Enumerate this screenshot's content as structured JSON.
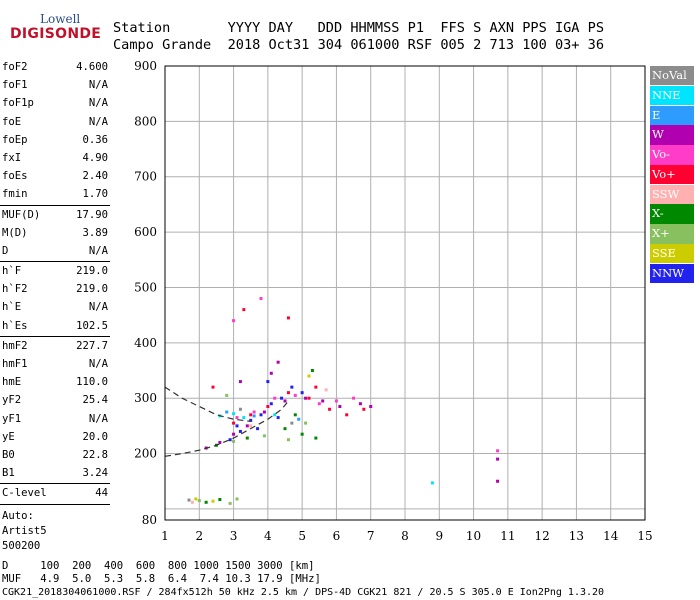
{
  "logo": {
    "top": "Lowell",
    "bottom": "DIGISONDE"
  },
  "header": {
    "row1": "Station       YYYY DAY   DDD HHMMSS P1  FFS S AXN PPS IGA PS",
    "row2": "Campo Grande  2018 Oct31 304 061000 RSF 005 2 713 100 03+ 36"
  },
  "params": {
    "groups": [
      [
        {
          "name": "foF2",
          "value": "4.600"
        },
        {
          "name": "foF1",
          "value": "N/A"
        },
        {
          "name": "foF1p",
          "value": "N/A"
        },
        {
          "name": "foE",
          "value": "N/A"
        },
        {
          "name": "foEp",
          "value": "0.36"
        },
        {
          "name": "fxI",
          "value": "4.90"
        },
        {
          "name": "foEs",
          "value": "2.40"
        },
        {
          "name": "fmin",
          "value": "1.70"
        }
      ],
      [
        {
          "name": "MUF(D)",
          "value": "17.90"
        },
        {
          "name": "M(D)",
          "value": "3.89"
        },
        {
          "name": "D",
          "value": "N/A"
        }
      ],
      [
        {
          "name": "h`F",
          "value": "219.0"
        },
        {
          "name": "h`F2",
          "value": "219.0"
        },
        {
          "name": "h`E",
          "value": "N/A"
        },
        {
          "name": "h`Es",
          "value": "102.5"
        }
      ],
      [
        {
          "name": "hmF2",
          "value": "227.7"
        },
        {
          "name": "hmF1",
          "value": "N/A"
        },
        {
          "name": "hmE",
          "value": "110.0"
        },
        {
          "name": "yF2",
          "value": "25.4"
        },
        {
          "name": "yF1",
          "value": "N/A"
        },
        {
          "name": "yE",
          "value": "20.0"
        },
        {
          "name": "B0",
          "value": "22.8"
        },
        {
          "name": "B1",
          "value": "3.24"
        }
      ],
      [
        {
          "name": "C-level",
          "value": "44"
        }
      ]
    ],
    "auto_label": "Auto:",
    "artist": "Artist5",
    "code": "500200"
  },
  "legend": [
    {
      "label": "NoVal",
      "color": "#8c8c8c"
    },
    {
      "label": "NNE",
      "color": "#00e5ff"
    },
    {
      "label": "E",
      "color": "#2e9bff"
    },
    {
      "label": "W",
      "color": "#b000b0"
    },
    {
      "label": "Vo-",
      "color": "#ff3cc8"
    },
    {
      "label": "Vo+",
      "color": "#ff0030"
    },
    {
      "label": "SSW",
      "color": "#ffb0b0"
    },
    {
      "label": "X-",
      "color": "#008800"
    },
    {
      "label": "X+",
      "color": "#88c060"
    },
    {
      "label": "SSE",
      "color": "#cccc00"
    },
    {
      "label": "NNW",
      "color": "#2222ee"
    }
  ],
  "footer": {
    "line1": "D     100  200  400  600  800 1000 1500 3000 [km]",
    "line2": "MUF   4.9  5.0  5.3  5.8  6.4  7.4 10.3 17.9 [MHz]",
    "line3": "CGK21_2018304061000.RSF / 284fx512h 50 kHz 2.5 km / DPS-4D CGK21 821 / 20.5 S 305.0 E Ion2Png 1.3.20"
  },
  "chart_data": {
    "type": "scatter",
    "xlim": [
      1,
      15
    ],
    "ylim": [
      80,
      900
    ],
    "x_ticks": [
      1,
      2,
      3,
      4,
      5,
      6,
      7,
      8,
      9,
      10,
      11,
      12,
      13,
      14,
      15
    ],
    "y_ticks": [
      80,
      100,
      200,
      300,
      400,
      500,
      600,
      700,
      800,
      900
    ],
    "y_tick_labels": [
      "80",
      "",
      "200",
      "300",
      "400",
      "500",
      "600",
      "700",
      "800",
      "900"
    ],
    "grid": true,
    "legend_position": "right",
    "series": [
      {
        "color": "#2222ee",
        "points": [
          [
            2.9,
            225
          ],
          [
            3.2,
            240
          ],
          [
            3.5,
            260
          ],
          [
            3.8,
            270
          ],
          [
            4.1,
            290
          ],
          [
            4.4,
            300
          ],
          [
            4.0,
            330
          ],
          [
            4.7,
            320
          ],
          [
            5.0,
            310
          ],
          [
            3.1,
            250
          ],
          [
            3.7,
            245
          ],
          [
            4.3,
            265
          ]
        ]
      },
      {
        "color": "#b000b0",
        "points": [
          [
            2.6,
            220
          ],
          [
            3.0,
            235
          ],
          [
            3.4,
            250
          ],
          [
            3.9,
            275
          ],
          [
            4.5,
            295
          ],
          [
            5.1,
            300
          ],
          [
            5.6,
            295
          ],
          [
            6.1,
            285
          ],
          [
            6.7,
            290
          ],
          [
            7.0,
            285
          ],
          [
            3.2,
            330
          ],
          [
            4.1,
            345
          ],
          [
            4.3,
            365
          ],
          [
            2.2,
            210
          ],
          [
            10.7,
            150
          ],
          [
            10.7,
            190
          ]
        ]
      },
      {
        "color": "#ff0030",
        "points": [
          [
            3.0,
            255
          ],
          [
            3.5,
            270
          ],
          [
            4.0,
            285
          ],
          [
            4.6,
            310
          ],
          [
            5.2,
            300
          ],
          [
            5.8,
            280
          ],
          [
            6.3,
            270
          ],
          [
            6.8,
            280
          ],
          [
            2.4,
            320
          ],
          [
            3.3,
            460
          ],
          [
            4.6,
            445
          ],
          [
            5.4,
            320
          ]
        ]
      },
      {
        "color": "#ff3cc8",
        "points": [
          [
            3.1,
            265
          ],
          [
            3.6,
            275
          ],
          [
            4.2,
            300
          ],
          [
            4.8,
            305
          ],
          [
            5.5,
            290
          ],
          [
            6.0,
            295
          ],
          [
            6.5,
            300
          ],
          [
            3.8,
            480
          ],
          [
            3.0,
            440
          ],
          [
            10.7,
            205
          ]
        ]
      },
      {
        "color": "#008800",
        "points": [
          [
            2.5,
            215
          ],
          [
            3.4,
            228
          ],
          [
            4.5,
            245
          ],
          [
            5.0,
            235
          ],
          [
            5.4,
            228
          ],
          [
            4.8,
            270
          ],
          [
            5.3,
            350
          ],
          [
            2.2,
            112
          ],
          [
            2.6,
            117
          ]
        ]
      },
      {
        "color": "#88c060",
        "points": [
          [
            3.0,
            222
          ],
          [
            3.9,
            232
          ],
          [
            4.6,
            225
          ],
          [
            5.1,
            255
          ],
          [
            2.8,
            305
          ],
          [
            2.0,
            115
          ],
          [
            2.9,
            110
          ],
          [
            3.1,
            118
          ]
        ]
      },
      {
        "color": "#cccc00",
        "points": [
          [
            5.2,
            340
          ],
          [
            2.4,
            114
          ],
          [
            1.9,
            118
          ]
        ]
      },
      {
        "color": "#00e5ff",
        "points": [
          [
            2.6,
            268
          ],
          [
            3.0,
            272
          ],
          [
            3.3,
            265
          ],
          [
            4.2,
            270
          ],
          [
            8.8,
            147
          ]
        ]
      },
      {
        "color": "#2e9bff",
        "points": [
          [
            2.8,
            275
          ],
          [
            3.6,
            268
          ],
          [
            4.9,
            262
          ]
        ]
      },
      {
        "color": "#ffb0b0",
        "points": [
          [
            3.5,
            250
          ],
          [
            5.7,
            315
          ],
          [
            1.8,
            112
          ]
        ]
      },
      {
        "color": "#8c8c8c",
        "points": [
          [
            3.2,
            280
          ],
          [
            4.7,
            255
          ],
          [
            1.7,
            116
          ]
        ]
      }
    ],
    "curves": [
      {
        "style": "dashed",
        "points": [
          [
            1.0,
            320
          ],
          [
            1.5,
            300
          ],
          [
            2.0,
            285
          ],
          [
            2.5,
            270
          ],
          [
            3.0,
            262
          ],
          [
            3.5,
            258
          ]
        ]
      },
      {
        "style": "dashed",
        "points": [
          [
            1.0,
            195
          ],
          [
            1.5,
            200
          ],
          [
            2.0,
            206
          ],
          [
            2.5,
            215
          ],
          [
            3.0,
            228
          ],
          [
            3.5,
            245
          ],
          [
            4.0,
            262
          ],
          [
            4.4,
            280
          ],
          [
            4.6,
            295
          ]
        ]
      }
    ]
  }
}
